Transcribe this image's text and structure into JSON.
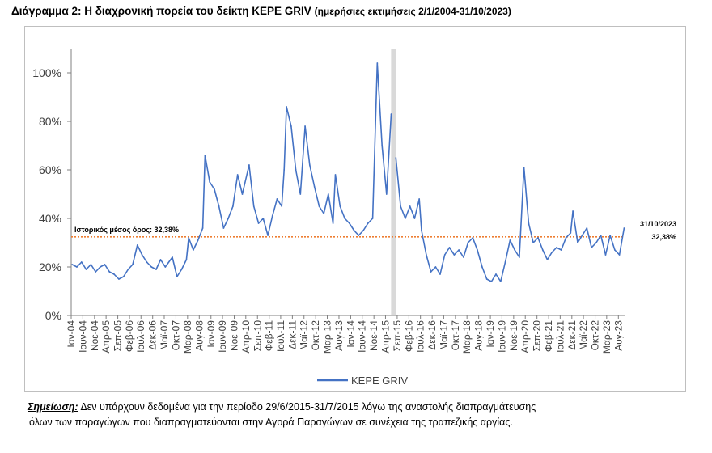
{
  "title": {
    "main": "Διάγραμμα 2: Η διαχρονική πορεία του δείκτη ΚΕΡΕ GRIV",
    "sub": "(ημερήσιες εκτιμήσεις 2/1/2004-31/10/2023)"
  },
  "note": {
    "label": "Σημείωση:",
    "text1": "Δεν υπάρχουν δεδομένα για την περίοδο 29/6/2015-31/7/2015 λόγω της αναστολής διαπραγμάτευσης",
    "text2": "όλων των παραγώγων που διαπραγματεύονται στην Αγορά Παραγώγων σε συνέχεια της τραπεζικής αργίας."
  },
  "colors": {
    "series": "#4472C4",
    "mean_line": "#ED7D31",
    "gap_band": "#D9D9D9",
    "grid": "#D9D9D9",
    "axis": "#808080"
  },
  "chart_data": {
    "type": "line",
    "xlabel": "",
    "ylabel": "",
    "ylim": [
      0,
      1.1
    ],
    "yticks": [
      0,
      0.2,
      0.4,
      0.6,
      0.8,
      1.0
    ],
    "ytick_labels": [
      "0%",
      "20%",
      "40%",
      "60%",
      "80%",
      "100%"
    ],
    "xlim": [
      "2004-01",
      "2023-11"
    ],
    "grid": false,
    "legend": "bottom",
    "x_tick_labels": [
      "Ιαν-04",
      "Ιουν-04",
      "Νοε-04",
      "Απρ-05",
      "Σεπ-05",
      "Φεβ-06",
      "Ιουλ-06",
      "Δεκ-06",
      "Μαϊ-07",
      "Οκτ-07",
      "Μαρ-08",
      "Αυγ-08",
      "Ιαν-09",
      "Ιουν-09",
      "Νοε-09",
      "Απρ-10",
      "Σεπ-10",
      "Φεβ-11",
      "Ιουλ-11",
      "Δεκ-11",
      "Μαϊ-12",
      "Οκτ-12",
      "Μαρ-13",
      "Αυγ-13",
      "Ιαν-14",
      "Ιουν-14",
      "Νοε-14",
      "Απρ-15",
      "Σεπ-15",
      "Φεβ-16",
      "Ιουλ-16",
      "Δεκ-16",
      "Μαϊ-17",
      "Οκτ-17",
      "Μαρ-18",
      "Αυγ-18",
      "Ιαν-19",
      "Ιουν-19",
      "Νοε-19",
      "Απρ-20",
      "Σεπ-20",
      "Φεβ-21",
      "Ιουλ-21",
      "Δεκ-21",
      "Μαϊ-22",
      "Οκτ-22",
      "Μαρ-23",
      "Αυγ-23"
    ],
    "series": [
      {
        "name": "ΚΕΡΕ GRIV",
        "color": "#4472C4",
        "points": [
          [
            "2004-01",
            0.21
          ],
          [
            "2004-03",
            0.2
          ],
          [
            "2004-05",
            0.22
          ],
          [
            "2004-07",
            0.19
          ],
          [
            "2004-09",
            0.21
          ],
          [
            "2004-11",
            0.18
          ],
          [
            "2005-01",
            0.2
          ],
          [
            "2005-03",
            0.21
          ],
          [
            "2005-05",
            0.18
          ],
          [
            "2005-07",
            0.17
          ],
          [
            "2005-09",
            0.15
          ],
          [
            "2005-11",
            0.16
          ],
          [
            "2006-01",
            0.19
          ],
          [
            "2006-03",
            0.21
          ],
          [
            "2006-05",
            0.29
          ],
          [
            "2006-07",
            0.25
          ],
          [
            "2006-09",
            0.22
          ],
          [
            "2006-11",
            0.2
          ],
          [
            "2007-01",
            0.19
          ],
          [
            "2007-03",
            0.23
          ],
          [
            "2007-05",
            0.2
          ],
          [
            "2007-08",
            0.24
          ],
          [
            "2007-10",
            0.16
          ],
          [
            "2007-12",
            0.19
          ],
          [
            "2008-02",
            0.23
          ],
          [
            "2008-03",
            0.32
          ],
          [
            "2008-05",
            0.27
          ],
          [
            "2008-07",
            0.31
          ],
          [
            "2008-09",
            0.36
          ],
          [
            "2008-10",
            0.66
          ],
          [
            "2008-12",
            0.55
          ],
          [
            "2009-02",
            0.52
          ],
          [
            "2009-04",
            0.45
          ],
          [
            "2009-06",
            0.36
          ],
          [
            "2009-08",
            0.4
          ],
          [
            "2009-10",
            0.45
          ],
          [
            "2009-12",
            0.58
          ],
          [
            "2010-02",
            0.5
          ],
          [
            "2010-05",
            0.62
          ],
          [
            "2010-07",
            0.45
          ],
          [
            "2010-09",
            0.38
          ],
          [
            "2010-11",
            0.4
          ],
          [
            "2011-01",
            0.33
          ],
          [
            "2011-03",
            0.41
          ],
          [
            "2011-05",
            0.48
          ],
          [
            "2011-07",
            0.45
          ],
          [
            "2011-08",
            0.6
          ],
          [
            "2011-09",
            0.86
          ],
          [
            "2011-11",
            0.78
          ],
          [
            "2012-01",
            0.6
          ],
          [
            "2012-03",
            0.5
          ],
          [
            "2012-05",
            0.78
          ],
          [
            "2012-07",
            0.62
          ],
          [
            "2012-09",
            0.53
          ],
          [
            "2012-11",
            0.45
          ],
          [
            "2013-01",
            0.42
          ],
          [
            "2013-03",
            0.5
          ],
          [
            "2013-05",
            0.38
          ],
          [
            "2013-06",
            0.58
          ],
          [
            "2013-08",
            0.45
          ],
          [
            "2013-10",
            0.4
          ],
          [
            "2013-12",
            0.38
          ],
          [
            "2014-02",
            0.35
          ],
          [
            "2014-04",
            0.33
          ],
          [
            "2014-06",
            0.35
          ],
          [
            "2014-08",
            0.38
          ],
          [
            "2014-10",
            0.4
          ],
          [
            "2014-12",
            1.04
          ],
          [
            "2015-02",
            0.7
          ],
          [
            "2015-04",
            0.5
          ],
          [
            "2015-06",
            0.83
          ],
          [
            "2015-08",
            0.65
          ],
          [
            "2015-10",
            0.45
          ],
          [
            "2015-12",
            0.4
          ],
          [
            "2016-02",
            0.45
          ],
          [
            "2016-04",
            0.4
          ],
          [
            "2016-06",
            0.48
          ],
          [
            "2016-07",
            0.35
          ],
          [
            "2016-09",
            0.25
          ],
          [
            "2016-11",
            0.18
          ],
          [
            "2017-01",
            0.2
          ],
          [
            "2017-03",
            0.17
          ],
          [
            "2017-05",
            0.25
          ],
          [
            "2017-07",
            0.28
          ],
          [
            "2017-09",
            0.25
          ],
          [
            "2017-11",
            0.27
          ],
          [
            "2018-01",
            0.24
          ],
          [
            "2018-03",
            0.3
          ],
          [
            "2018-05",
            0.32
          ],
          [
            "2018-07",
            0.27
          ],
          [
            "2018-09",
            0.2
          ],
          [
            "2018-11",
            0.15
          ],
          [
            "2019-01",
            0.14
          ],
          [
            "2019-03",
            0.17
          ],
          [
            "2019-05",
            0.14
          ],
          [
            "2019-07",
            0.22
          ],
          [
            "2019-09",
            0.31
          ],
          [
            "2019-11",
            0.27
          ],
          [
            "2020-01",
            0.24
          ],
          [
            "2020-03",
            0.61
          ],
          [
            "2020-05",
            0.38
          ],
          [
            "2020-07",
            0.3
          ],
          [
            "2020-09",
            0.32
          ],
          [
            "2020-11",
            0.27
          ],
          [
            "2021-01",
            0.23
          ],
          [
            "2021-03",
            0.26
          ],
          [
            "2021-05",
            0.28
          ],
          [
            "2021-07",
            0.27
          ],
          [
            "2021-09",
            0.32
          ],
          [
            "2021-11",
            0.34
          ],
          [
            "2021-12",
            0.43
          ],
          [
            "2022-02",
            0.3
          ],
          [
            "2022-04",
            0.33
          ],
          [
            "2022-06",
            0.36
          ],
          [
            "2022-08",
            0.28
          ],
          [
            "2022-10",
            0.3
          ],
          [
            "2022-12",
            0.33
          ],
          [
            "2023-02",
            0.25
          ],
          [
            "2023-04",
            0.33
          ],
          [
            "2023-06",
            0.27
          ],
          [
            "2023-08",
            0.25
          ],
          [
            "2023-10",
            0.36
          ]
        ]
      }
    ],
    "gap": {
      "start": "2015-06-29",
      "end": "2015-07-31"
    },
    "mean_line": {
      "value": 0.3238,
      "label": "Ιστορικός μέσος όρος: 32,38%"
    },
    "end_annotation": {
      "date": "31/10/2023",
      "value": "32,38%"
    }
  }
}
